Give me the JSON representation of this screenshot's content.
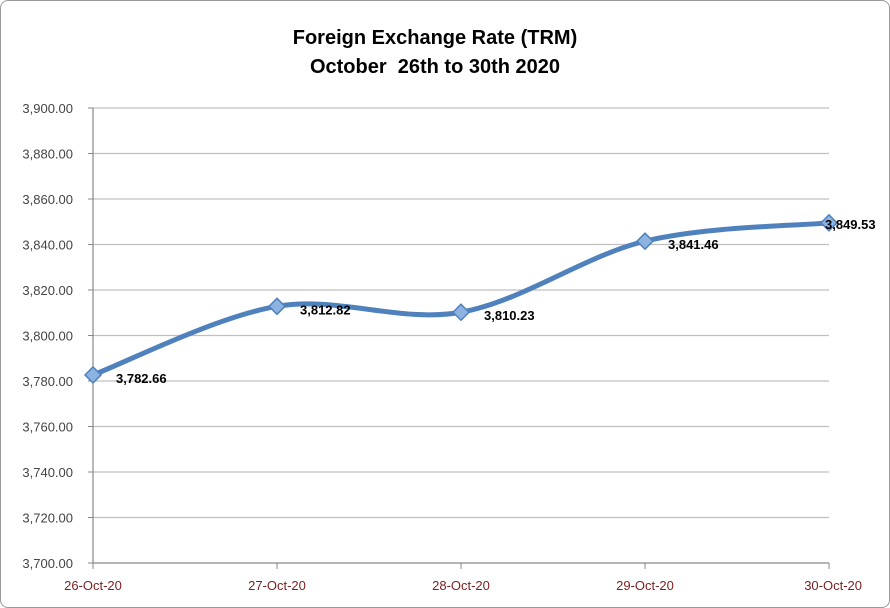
{
  "chart_data": {
    "type": "line",
    "title": "Foreign Exchange Rate (TRM)",
    "subtitle": "October  26th to 30th 2020",
    "categories": [
      "26-Oct-20",
      "27-Oct-20",
      "28-Oct-20",
      "29-Oct-20",
      "30-Oct-20"
    ],
    "series": [
      {
        "values": [
          3782.66,
          3812.82,
          3810.23,
          3841.46,
          3849.53
        ],
        "labels": [
          "3,782.66",
          "3,812.82",
          "3,810.23",
          "3,841.46",
          "3,849.53"
        ],
        "color": "#4f81bd",
        "marker": "diamond",
        "smooth": true
      }
    ],
    "ylim": [
      3700,
      3900
    ],
    "yticks": [
      3700,
      3720,
      3740,
      3760,
      3780,
      3800,
      3820,
      3840,
      3860,
      3880,
      3900
    ],
    "ytick_labels": [
      "3,700.00",
      "3,720.00",
      "3,740.00",
      "3,760.00",
      "3,780.00",
      "3,800.00",
      "3,820.00",
      "3,840.00",
      "3,860.00",
      "3,880.00",
      "3,900.00"
    ],
    "xlabel": "",
    "ylabel": "",
    "grid": true,
    "legend": "none",
    "colors": {
      "line": "#4f81bd",
      "marker_fill": "#8db3e2",
      "grid": "#c0c0c0",
      "axis": "#888888",
      "xtick_text": "#7a1f1f"
    }
  }
}
